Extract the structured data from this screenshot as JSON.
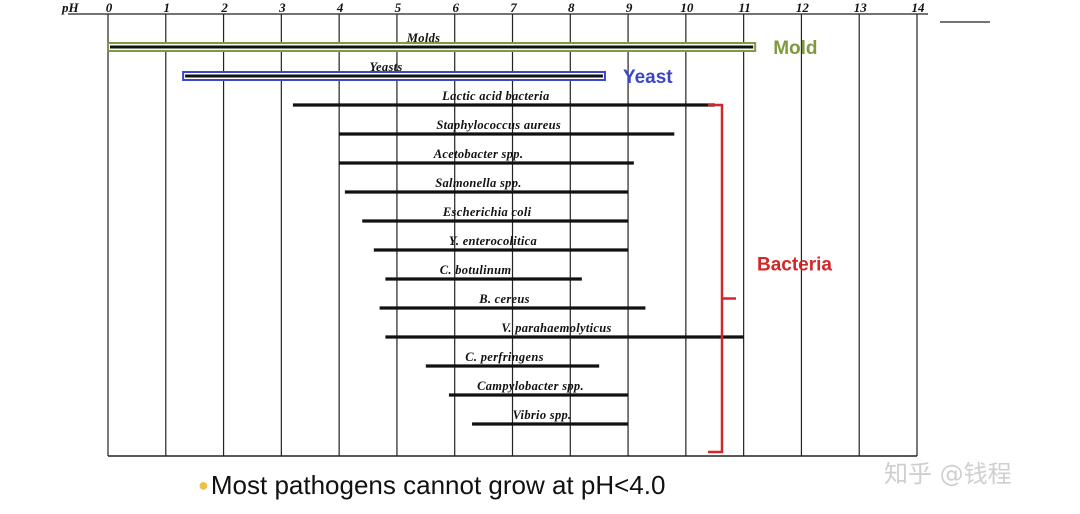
{
  "chart_data": {
    "type": "range-bar",
    "axis_name": "pH",
    "xlim": [
      0,
      14
    ],
    "ticks": [
      0,
      1,
      2,
      3,
      4,
      5,
      6,
      7,
      8,
      9,
      10,
      11,
      12,
      13,
      14
    ],
    "groups": [
      {
        "key": "mold",
        "label": "Mold",
        "color": "#7f9a3c",
        "style": "outline"
      },
      {
        "key": "yeast",
        "label": "Yeast",
        "color": "#3b46c8",
        "style": "outline"
      },
      {
        "key": "bacteria",
        "label": "Bacteria",
        "color": "#d02828",
        "style": "bracket"
      }
    ],
    "ranges": [
      {
        "group": "mold",
        "label": "Molds",
        "min": 0.0,
        "max": 11.2
      },
      {
        "group": "yeast",
        "label": "Yeasts",
        "min": 1.3,
        "max": 8.6
      },
      {
        "group": "bacteria",
        "label": "Lactic acid bacteria",
        "min": 3.2,
        "max": 10.5
      },
      {
        "group": "bacteria",
        "label": "Staphylococcus aureus",
        "min": 4.0,
        "max": 9.8
      },
      {
        "group": "bacteria",
        "label": "Acetobacter spp.",
        "min": 4.0,
        "max": 9.1
      },
      {
        "group": "bacteria",
        "label": "Salmonella spp.",
        "min": 4.1,
        "max": 9.0
      },
      {
        "group": "bacteria",
        "label": "Escherichia coli",
        "min": 4.4,
        "max": 9.0
      },
      {
        "group": "bacteria",
        "label": "Y. enterocolitica",
        "min": 4.6,
        "max": 9.0
      },
      {
        "group": "bacteria",
        "label": "C. botulinum",
        "min": 4.8,
        "max": 8.2
      },
      {
        "group": "bacteria",
        "label": "B. cereus",
        "min": 4.7,
        "max": 9.3
      },
      {
        "group": "bacteria",
        "label": "V. parahaemolyticus",
        "min": 4.8,
        "max": 11.0
      },
      {
        "group": "bacteria",
        "label": "C. perfringens",
        "min": 5.5,
        "max": 8.5
      },
      {
        "group": "bacteria",
        "label": "Campylobacter spp.",
        "min": 5.9,
        "max": 9.0
      },
      {
        "group": "bacteria",
        "label": "Vibrio spp.",
        "min": 6.3,
        "max": 9.0
      }
    ],
    "grid": true,
    "legend": "right"
  },
  "footnote": "Most pathogens cannot grow at pH<4.0",
  "watermark": "知乎 @钱程"
}
